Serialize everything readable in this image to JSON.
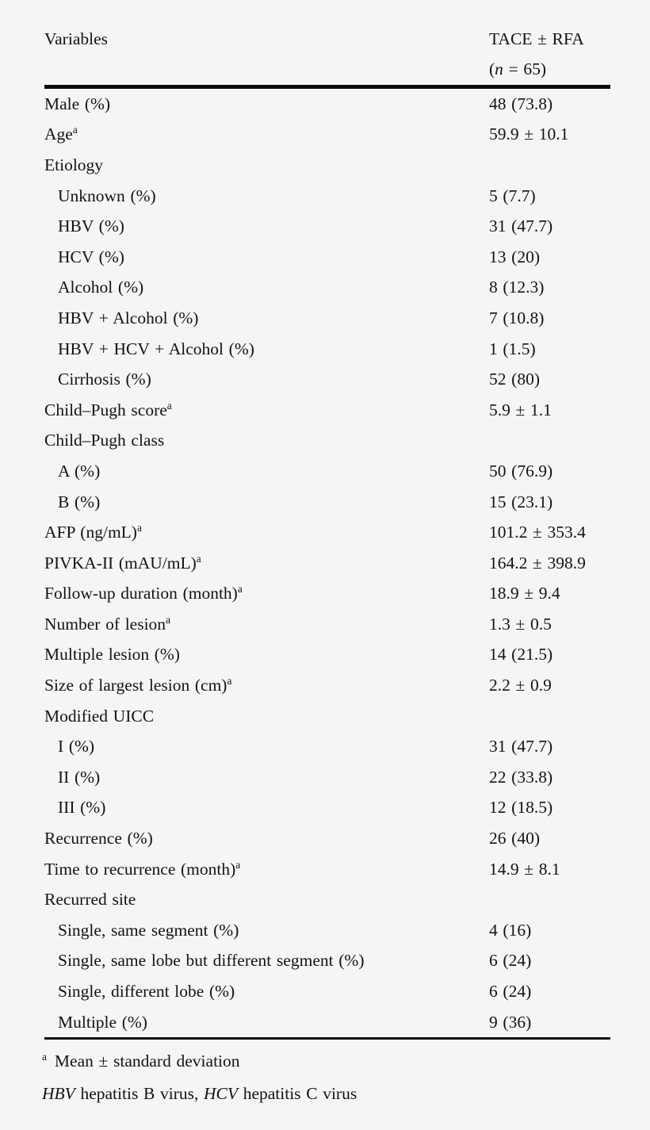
{
  "table": {
    "header": {
      "col1": "Variables",
      "col2_line1": "TACE ± RFA",
      "col2_line2_open": "(",
      "col2_line2_n": "n",
      "col2_line2_rest": " = 65)"
    },
    "rows": [
      {
        "label": "Male (%)",
        "sup": "",
        "value": "48 (73.8)",
        "indent": 0
      },
      {
        "label": "Age",
        "sup": "a",
        "value": "59.9 ± 10.1",
        "indent": 0
      },
      {
        "label": "Etiology",
        "sup": "",
        "value": "",
        "indent": 0
      },
      {
        "label": "Unknown (%)",
        "sup": "",
        "value": "5 (7.7)",
        "indent": 1
      },
      {
        "label": "HBV (%)",
        "sup": "",
        "value": "31 (47.7)",
        "indent": 1
      },
      {
        "label": "HCV (%)",
        "sup": "",
        "value": "13 (20)",
        "indent": 1
      },
      {
        "label": "Alcohol (%)",
        "sup": "",
        "value": "8 (12.3)",
        "indent": 1
      },
      {
        "label": "HBV + Alcohol (%)",
        "sup": "",
        "value": "7 (10.8)",
        "indent": 1
      },
      {
        "label": "HBV + HCV + Alcohol (%)",
        "sup": "",
        "value": "1 (1.5)",
        "indent": 1
      },
      {
        "label": "Cirrhosis (%)",
        "sup": "",
        "value": "52 (80)",
        "indent": 1
      },
      {
        "label": "Child–Pugh score",
        "sup": "a",
        "value": "5.9 ± 1.1",
        "indent": 0
      },
      {
        "label": "Child–Pugh class",
        "sup": "",
        "value": "",
        "indent": 0
      },
      {
        "label": "A (%)",
        "sup": "",
        "value": "50 (76.9)",
        "indent": 1
      },
      {
        "label": "B (%)",
        "sup": "",
        "value": "15 (23.1)",
        "indent": 1
      },
      {
        "label": "AFP (ng/mL)",
        "sup": "a",
        "value": "101.2 ± 353.4",
        "indent": 0
      },
      {
        "label": "PIVKA-II (mAU/mL)",
        "sup": "a",
        "value": "164.2 ± 398.9",
        "indent": 0
      },
      {
        "label": "Follow-up duration (month)",
        "sup": "a",
        "value": "18.9 ± 9.4",
        "indent": 0
      },
      {
        "label": "Number of lesion",
        "sup": "a",
        "value": "1.3 ± 0.5",
        "indent": 0
      },
      {
        "label": "Multiple lesion (%)",
        "sup": "",
        "value": "14 (21.5)",
        "indent": 0
      },
      {
        "label": "Size of largest lesion (cm)",
        "sup": "a",
        "value": "2.2 ± 0.9",
        "indent": 0
      },
      {
        "label": "Modified UICC",
        "sup": "",
        "value": "",
        "indent": 0
      },
      {
        "label": "I (%)",
        "sup": "",
        "value": "31 (47.7)",
        "indent": 1
      },
      {
        "label": "II (%)",
        "sup": "",
        "value": "22 (33.8)",
        "indent": 1
      },
      {
        "label": "III (%)",
        "sup": "",
        "value": "12 (18.5)",
        "indent": 1
      },
      {
        "label": "Recurrence (%)",
        "sup": "",
        "value": "26 (40)",
        "indent": 0
      },
      {
        "label": "Time to recurrence (month)",
        "sup": "a",
        "value": "14.9 ± 8.1",
        "indent": 0
      },
      {
        "label": "Recurred site",
        "sup": "",
        "value": "",
        "indent": 0
      },
      {
        "label": "Single, same segment (%)",
        "sup": "",
        "value": "4 (16)",
        "indent": 1
      },
      {
        "label": "Single, same lobe but different segment (%)",
        "sup": "",
        "value": "6 (24)",
        "indent": 1
      },
      {
        "label": "Single, different lobe (%)",
        "sup": "",
        "value": "6 (24)",
        "indent": 1
      },
      {
        "label": "Multiple (%)",
        "sup": "",
        "value": "9 (36)",
        "indent": 1
      }
    ]
  },
  "footnotes": {
    "fn1_marker": "a",
    "fn1_text": "Mean ± standard deviation",
    "fn2_hbv": "HBV",
    "fn2_text1": " hepatitis B virus, ",
    "fn2_hcv": "HCV",
    "fn2_text2": " hepatitis C virus"
  },
  "colors": {
    "background": "#f5f5f5",
    "text": "#131313",
    "rule": "#0b0b0b"
  }
}
